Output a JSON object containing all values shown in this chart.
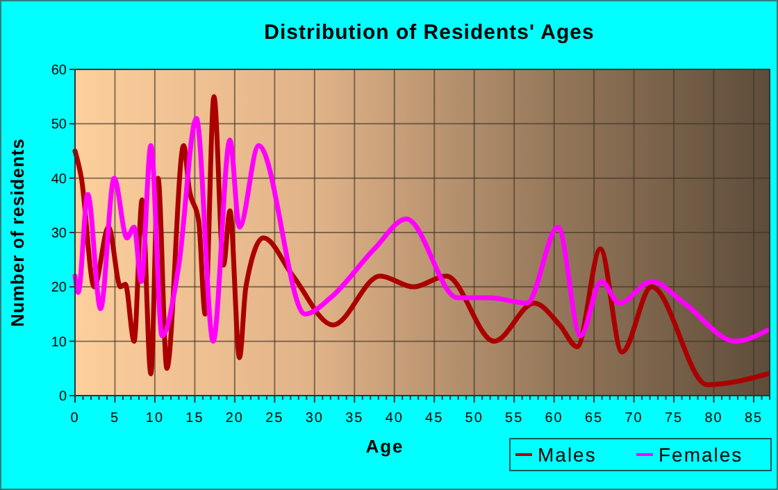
{
  "chart_data": {
    "type": "line",
    "title": "Distribution of Residents' Ages",
    "xlabel": "Age",
    "ylabel": "Number of residents",
    "xlim": [
      0,
      87
    ],
    "ylim": [
      0,
      60
    ],
    "yticks": [
      0,
      10,
      20,
      30,
      40,
      50,
      60
    ],
    "xticks": [
      0,
      {
        "value": 1,
        "label": null
      },
      {
        "value": 2,
        "label": null
      },
      {
        "value": 3,
        "label": null
      },
      {
        "value": 4,
        "label": null
      },
      5,
      {
        "value": 6,
        "label": null
      },
      {
        "value": 7,
        "label": null
      },
      {
        "value": 8,
        "label": null
      },
      {
        "value": 9,
        "label": null
      },
      10,
      {
        "value": 11,
        "label": null
      },
      {
        "value": 12,
        "label": null
      },
      {
        "value": 13,
        "label": null
      },
      {
        "value": 14,
        "label": null
      },
      15,
      {
        "value": 16,
        "label": null
      },
      {
        "value": 17,
        "label": null
      },
      {
        "value": 18,
        "label": null
      },
      {
        "value": 19,
        "label": null
      },
      20,
      {
        "value": 21,
        "label": null
      },
      {
        "value": 22,
        "label": null
      },
      {
        "value": 23,
        "label": null
      },
      {
        "value": 24,
        "label": null
      },
      25,
      {
        "value": 26,
        "label": null
      },
      {
        "value": 27,
        "label": null
      },
      {
        "value": 28,
        "label": null
      },
      {
        "value": 29,
        "label": null
      },
      30,
      {
        "value": 31,
        "label": null
      },
      {
        "value": 32,
        "label": null
      },
      {
        "value": 33,
        "label": null
      },
      {
        "value": 34,
        "label": null
      },
      35,
      {
        "value": 36,
        "label": null
      },
      {
        "value": 37,
        "label": null
      },
      {
        "value": 38,
        "label": null
      },
      {
        "value": 39,
        "label": null
      },
      40,
      {
        "value": 41,
        "label": null
      },
      {
        "value": 42,
        "label": null
      },
      {
        "value": 43,
        "label": null
      },
      {
        "value": 44,
        "label": null
      },
      45,
      {
        "value": 46,
        "label": null
      },
      {
        "value": 47,
        "label": null
      },
      {
        "value": 48,
        "label": null
      },
      {
        "value": 49,
        "label": null
      },
      50,
      {
        "value": 51,
        "label": null
      },
      {
        "value": 52,
        "label": null
      },
      {
        "value": 53,
        "label": null
      },
      {
        "value": 54,
        "label": null
      },
      55,
      {
        "value": 56,
        "label": null
      },
      {
        "value": 57,
        "label": null
      },
      {
        "value": 58,
        "label": null
      },
      {
        "value": 59,
        "label": null
      },
      60,
      {
        "value": 61,
        "label": null
      },
      {
        "value": 62,
        "label": null
      },
      {
        "value": 63,
        "label": null
      },
      {
        "value": 64,
        "label": null
      },
      65,
      {
        "value": 66,
        "label": null
      },
      {
        "value": 67,
        "label": null
      },
      {
        "value": 68,
        "label": null
      },
      {
        "value": 69,
        "label": null
      },
      70,
      {
        "value": 71,
        "label": null
      },
      {
        "value": 72,
        "label": null
      },
      {
        "value": 73,
        "label": null
      },
      {
        "value": 74,
        "label": null
      },
      75,
      {
        "value": 76,
        "label": null
      },
      {
        "value": 77,
        "label": null
      },
      {
        "value": 78,
        "label": null
      },
      {
        "value": 79,
        "label": null
      },
      80,
      {
        "value": 81,
        "label": null
      },
      {
        "value": 82,
        "label": null
      },
      {
        "value": 83,
        "label": null
      },
      {
        "value": 84,
        "label": null
      },
      85,
      {
        "value": 86,
        "label": null
      },
      {
        "value": 87,
        "label": null
      }
    ],
    "grid": true,
    "legend": "bottom right",
    "marker": "none",
    "line_style": "solid",
    "series": [
      {
        "name": "Males",
        "color": "#aa0000",
        "x": [
          0,
          0.8,
          2.4,
          4.2,
          5.7,
          6.3,
          7.4,
          8.4,
          9.5,
          10.4,
          11.5,
          13.6,
          14.3,
          15.5,
          16.3,
          17.4,
          18.6,
          19.4,
          20.6,
          21.4,
          23.6,
          27.3,
          32.3,
          38.2,
          42.4,
          46.5,
          52.5,
          57.5,
          60.7,
          62.9,
          65.8,
          68.5,
          72.2,
          79.2,
          86.8
        ],
        "values": [
          45,
          40,
          20,
          31,
          20,
          20.5,
          10,
          36,
          4,
          40,
          5,
          46,
          38,
          32,
          15,
          55,
          24,
          34,
          7,
          20,
          29,
          22,
          13,
          22,
          20,
          22,
          10,
          17,
          13,
          9,
          27,
          8,
          20,
          2,
          4
        ]
      },
      {
        "name": "Females",
        "color": "#ff00ff",
        "x": [
          0,
          0.4,
          1.6,
          3.2,
          4.9,
          6.5,
          7.4,
          8.3,
          9.5,
          10.9,
          13,
          15.2,
          17.3,
          19.4,
          20.6,
          23,
          28.8,
          32,
          37.5,
          41.5,
          47.9,
          52,
          56.6,
          60.5,
          63.3,
          65.9,
          68.2,
          72.2,
          76.3,
          82.7,
          86.7
        ],
        "values": [
          22,
          19,
          37,
          16,
          40,
          29,
          31,
          21,
          46,
          11,
          24,
          51,
          10,
          47,
          31,
          46,
          15,
          18,
          27,
          32.5,
          18,
          18,
          17,
          31,
          11,
          21,
          17,
          21,
          17,
          10,
          12
        ]
      }
    ]
  }
}
